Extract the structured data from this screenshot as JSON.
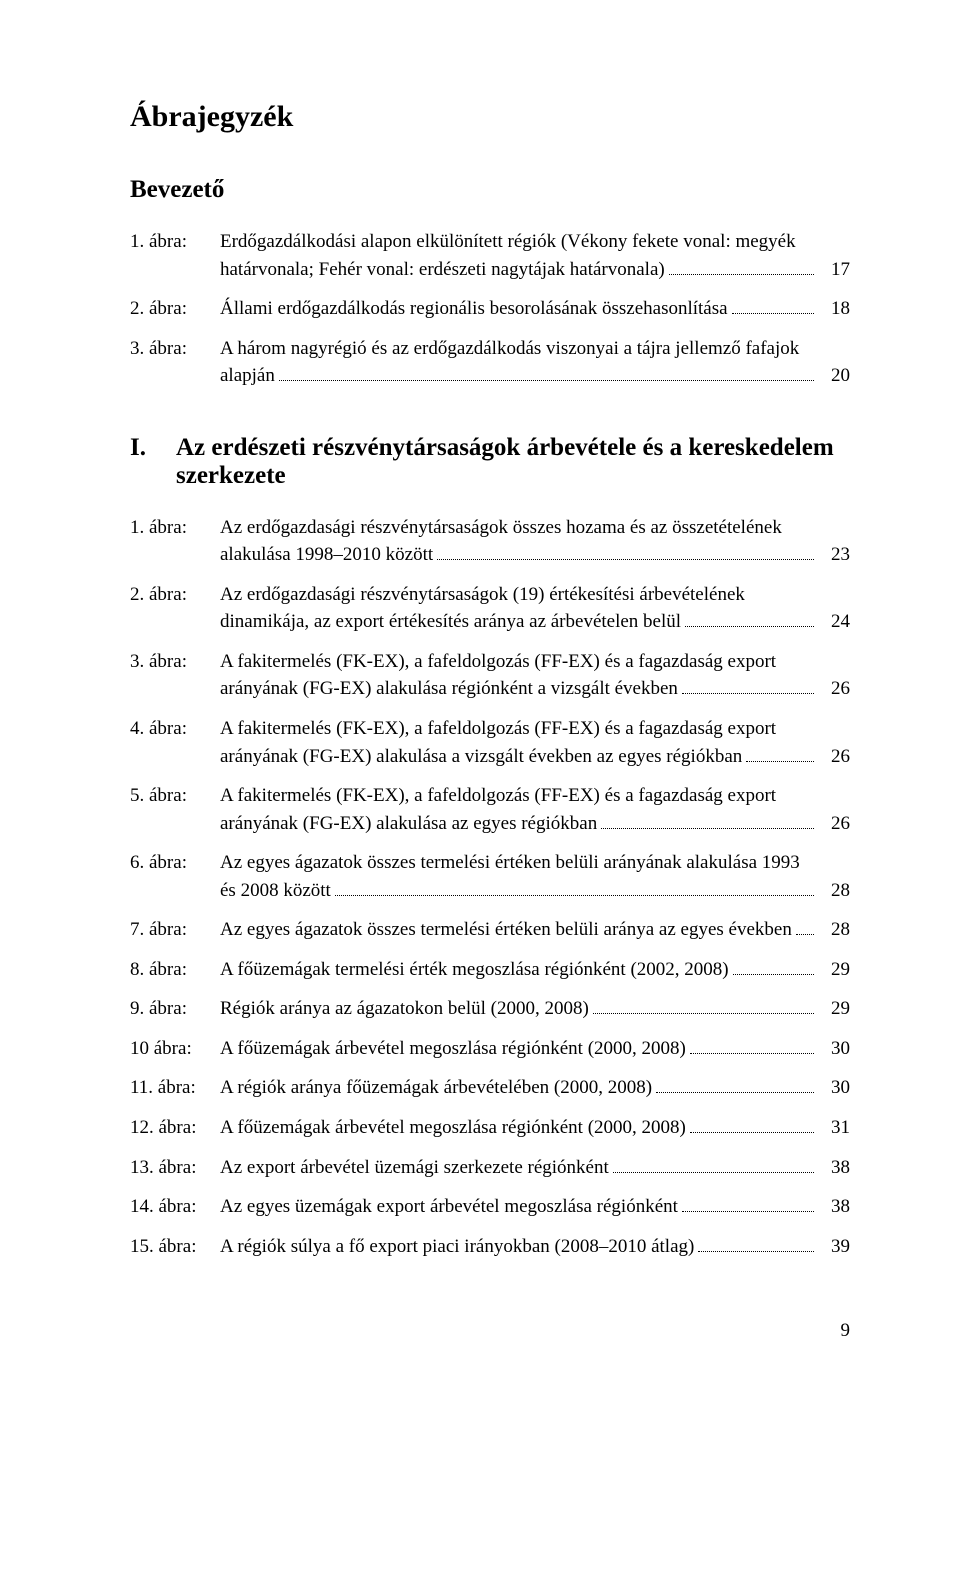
{
  "page": {
    "title": "Ábrajegyzék",
    "page_number": "9",
    "font_family": "Times New Roman",
    "text_color": "#000000",
    "background_color": "#ffffff",
    "title_fontsize": 30,
    "section_fontsize": 25,
    "body_fontsize": 19,
    "leader_style": "dotted",
    "leader_color": "#000000"
  },
  "sections": [
    {
      "heading": "Bevezető",
      "heading_type": "plain",
      "entries": [
        {
          "label": "1. ábra:",
          "lines": [
            "Erdőgazdálkodási alapon elkülönített régiók (Vékony fekete vonal: megyék",
            "határvonala; Fehér vonal: erdészeti nagytájak határvonala)"
          ],
          "page": "17"
        },
        {
          "label": "2. ábra:",
          "lines": [
            "Állami erdőgazdálkodás regionális besorolásának összehasonlítása"
          ],
          "page": "18"
        },
        {
          "label": "3. ábra:",
          "lines": [
            "A három nagyrégió és az erdőgazdálkodás viszonyai a tájra jellemző fafajok",
            "alapján"
          ],
          "page": "20"
        }
      ]
    },
    {
      "heading_type": "numbered",
      "number": "I.",
      "heading_lines": [
        "Az erdészeti részvénytársaságok árbevétele és a kereskedelem",
        "szerkezete"
      ],
      "entries": [
        {
          "label": "1. ábra:",
          "lines": [
            "Az erdőgazdasági részvénytársaságok összes hozama és az összetételének",
            "alakulása 1998–2010 között"
          ],
          "page": "23"
        },
        {
          "label": "2. ábra:",
          "lines": [
            "Az erdőgazdasági részvénytársaságok (19) értékesítési árbevételének",
            "dinamikája, az export értékesítés aránya az árbevételen belül"
          ],
          "page": "24"
        },
        {
          "label": "3. ábra:",
          "lines": [
            "A fakitermelés (FK-EX), a fafeldolgozás (FF-EX) és a fagazdaság export",
            "arányának (FG-EX) alakulása régiónként a vizsgált években"
          ],
          "page": "26"
        },
        {
          "label": "4. ábra:",
          "lines": [
            "A fakitermelés (FK-EX), a fafeldolgozás (FF-EX) és a fagazdaság export",
            "arányának (FG-EX) alakulása a vizsgált években az egyes régiókban"
          ],
          "page": "26"
        },
        {
          "label": "5. ábra:",
          "lines": [
            "A fakitermelés (FK-EX), a fafeldolgozás (FF-EX) és a fagazdaság export",
            "arányának (FG-EX) alakulása az egyes régiókban"
          ],
          "page": "26"
        },
        {
          "label": "6. ábra:",
          "lines": [
            "Az egyes ágazatok összes termelési értéken belüli arányának alakulása 1993",
            "és 2008 között"
          ],
          "page": "28"
        },
        {
          "label": "7. ábra:",
          "lines": [
            "Az egyes ágazatok összes termelési értéken belüli aránya az egyes években"
          ],
          "page": "28"
        },
        {
          "label": "8. ábra:",
          "lines": [
            "A főüzemágak termelési érték megoszlása régiónként (2002, 2008)"
          ],
          "page": "29"
        },
        {
          "label": "9. ábra:",
          "lines": [
            "Régiók aránya az ágazatokon belül (2000, 2008)"
          ],
          "page": "29"
        },
        {
          "label": "10 ábra:",
          "lines": [
            "A főüzemágak árbevétel megoszlása régiónként (2000, 2008)"
          ],
          "page": "30"
        },
        {
          "label": "11. ábra:",
          "lines": [
            "A régiók aránya főüzemágak árbevételében (2000, 2008)"
          ],
          "page": "30"
        },
        {
          "label": "12. ábra:",
          "lines": [
            "A főüzemágak árbevétel megoszlása régiónként (2000, 2008)"
          ],
          "page": "31"
        },
        {
          "label": "13. ábra:",
          "lines": [
            "Az export árbevétel üzemági szerkezete régiónként"
          ],
          "page": "38"
        },
        {
          "label": "14. ábra:",
          "lines": [
            "Az egyes üzemágak export árbevétel megoszlása régiónként"
          ],
          "page": "38"
        },
        {
          "label": "15. ábra:",
          "lines": [
            "A régiók súlya a fő export piaci irányokban (2008–2010 átlag)"
          ],
          "page": "39"
        }
      ]
    }
  ]
}
